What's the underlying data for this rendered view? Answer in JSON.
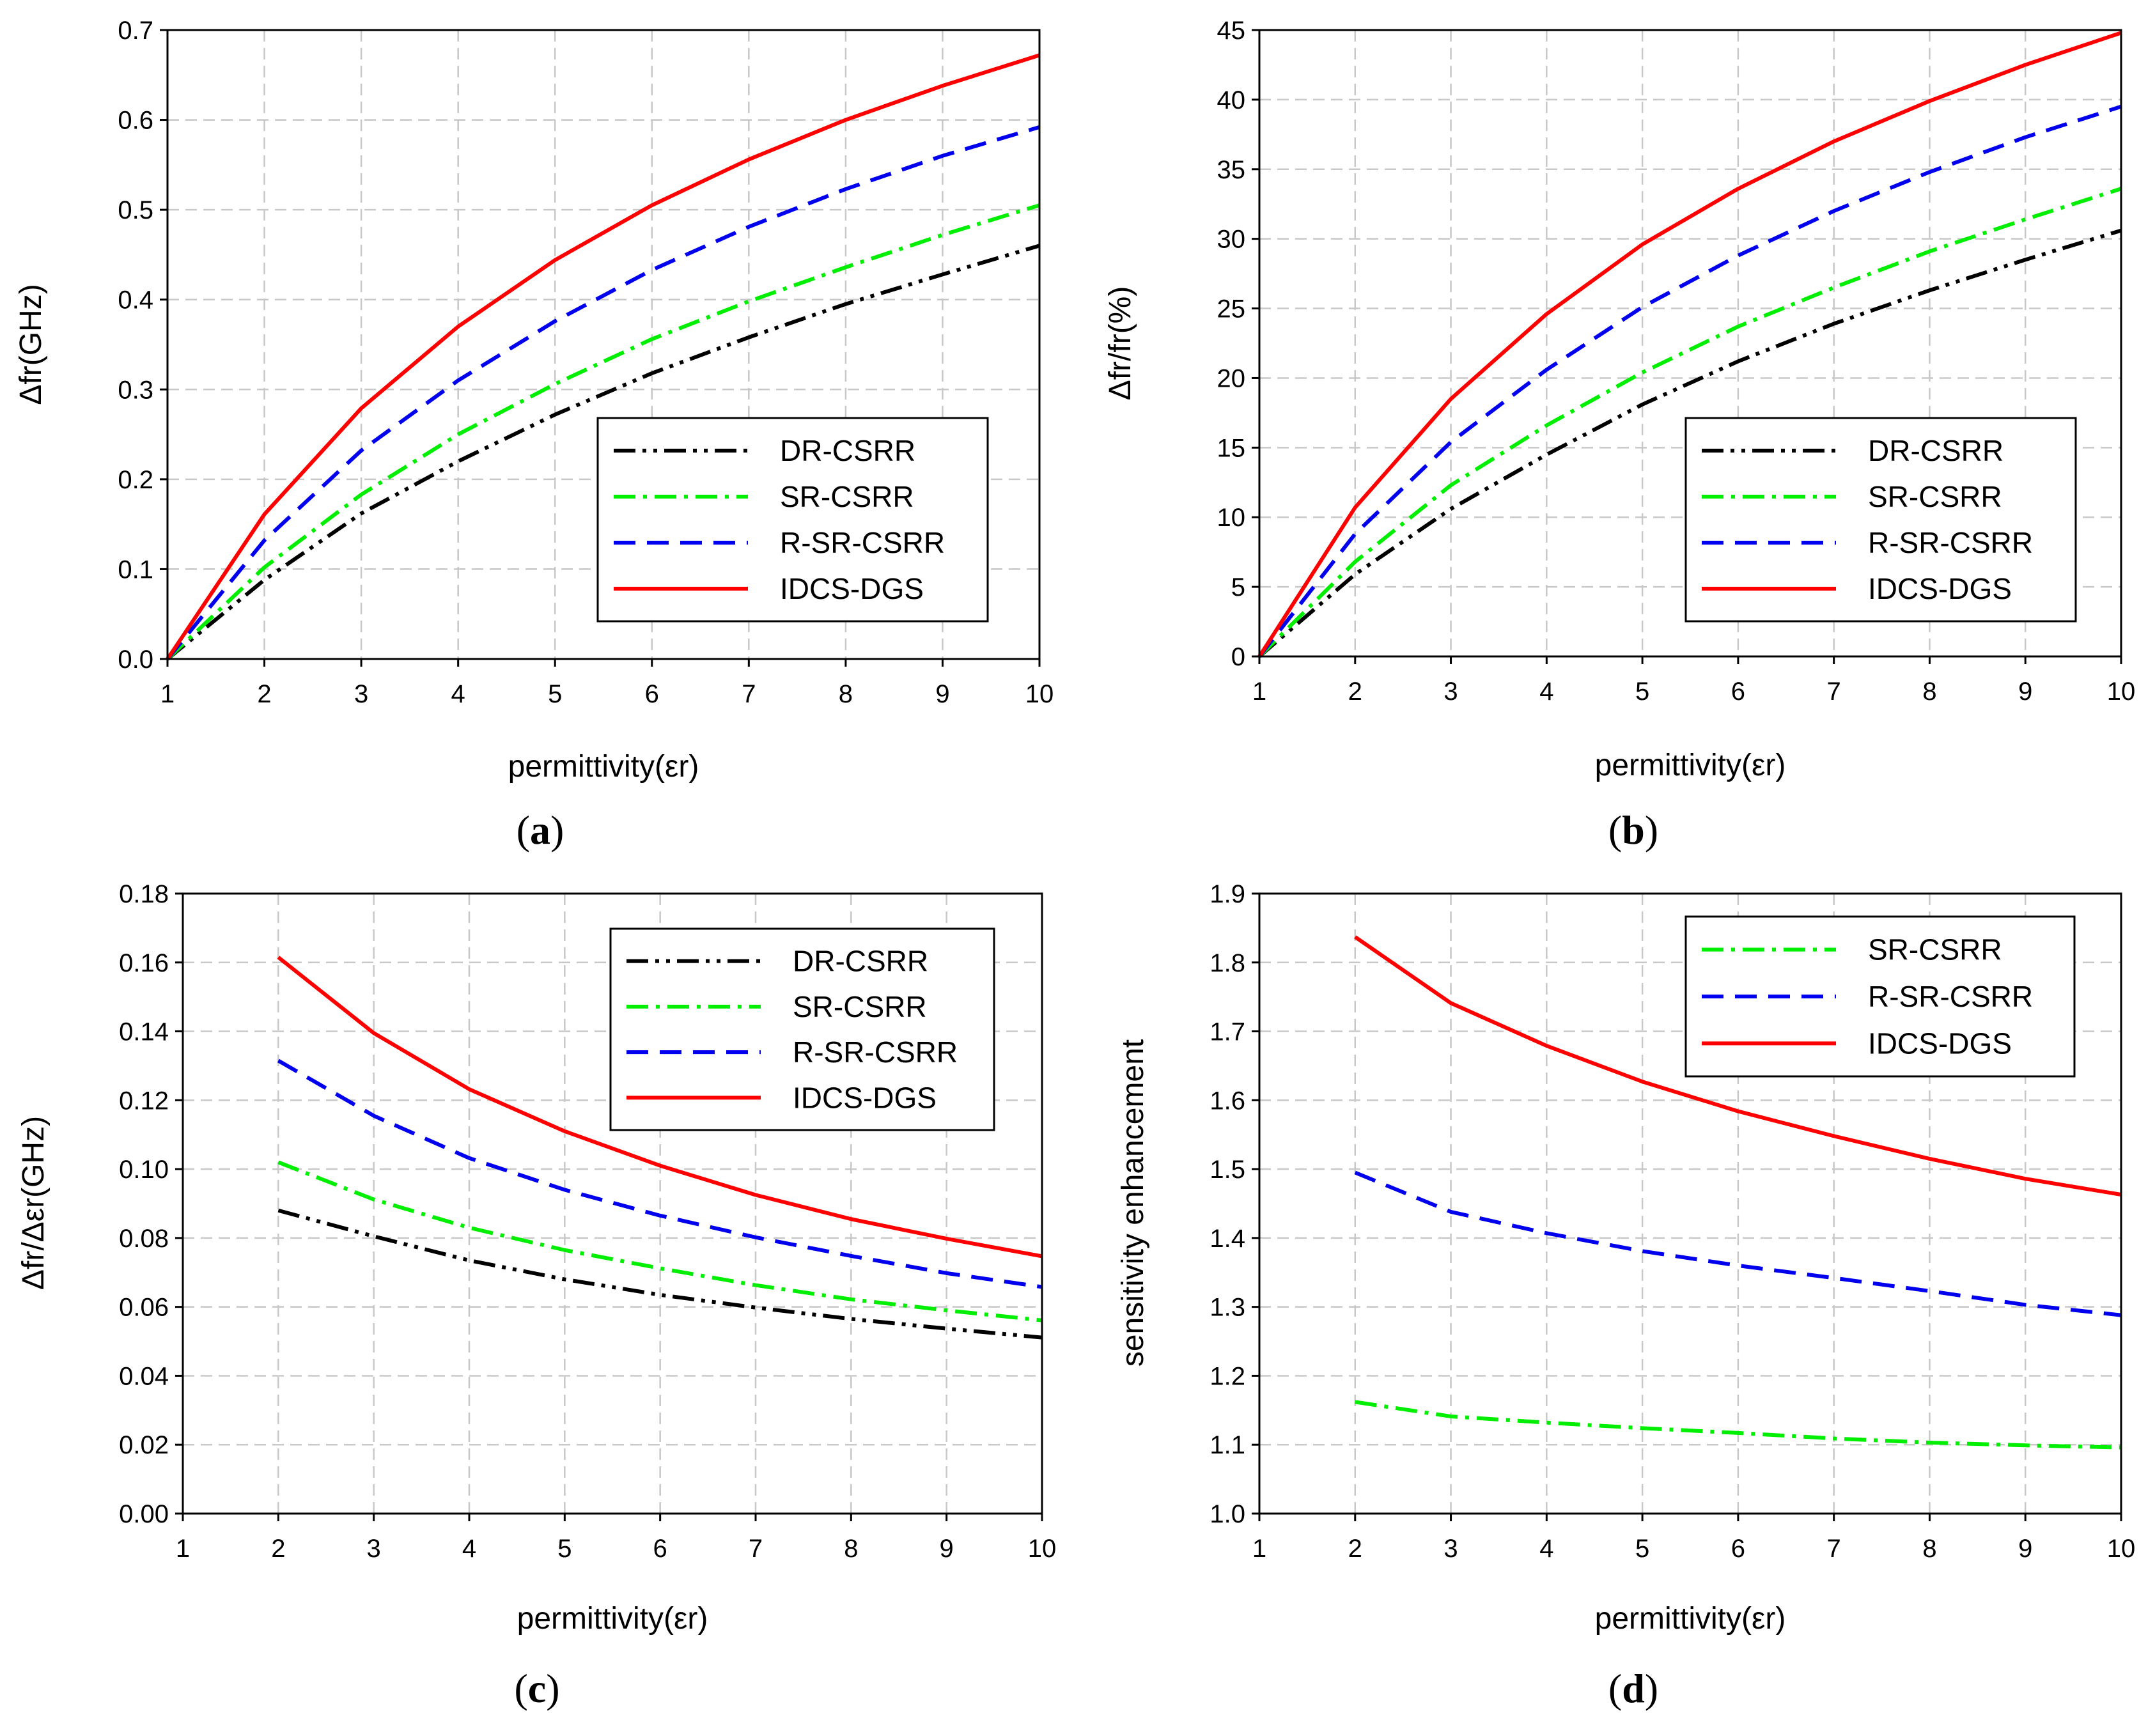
{
  "chart_data": [
    {
      "type": "line",
      "caption": "a",
      "title": "",
      "xlabel": "permittivity(εr)",
      "ylabel": "Δfr(GHz)",
      "xlim": [
        1,
        10
      ],
      "ylim": [
        0,
        0.7
      ],
      "x_ticks": [
        1,
        2,
        3,
        4,
        5,
        6,
        7,
        8,
        9,
        10
      ],
      "y_ticks": [
        "0.0",
        "0.1",
        "0.2",
        "0.3",
        "0.4",
        "0.5",
        "0.6",
        "0.7"
      ],
      "grid": true,
      "legend_position": "bottom-right",
      "x": [
        1,
        2,
        3,
        4,
        5,
        6,
        7,
        8,
        9,
        10
      ],
      "series": [
        {
          "name": "DR-CSRR",
          "style": "dash-dot-dot",
          "color": "#000000",
          "values": [
            0,
            0.088,
            0.162,
            0.22,
            0.272,
            0.318,
            0.358,
            0.395,
            0.428,
            0.46
          ]
        },
        {
          "name": "SR-CSRR",
          "style": "dash-dot",
          "color": "#00ee00",
          "values": [
            0,
            0.102,
            0.183,
            0.25,
            0.306,
            0.356,
            0.398,
            0.436,
            0.472,
            0.505
          ]
        },
        {
          "name": "R-SR-CSRR",
          "style": "dash",
          "color": "#0000ee",
          "values": [
            0,
            0.132,
            0.232,
            0.31,
            0.376,
            0.433,
            0.481,
            0.523,
            0.56,
            0.592
          ]
        },
        {
          "name": "IDCS-DGS",
          "style": "solid",
          "color": "#ff0000",
          "values": [
            0,
            0.161,
            0.279,
            0.37,
            0.444,
            0.505,
            0.556,
            0.6,
            0.638,
            0.672
          ]
        }
      ]
    },
    {
      "type": "line",
      "caption": "b",
      "title": "",
      "xlabel": "permittivity(εr)",
      "ylabel": "Δfr/fr(%)",
      "xlim": [
        1,
        10
      ],
      "ylim": [
        0,
        45
      ],
      "x_ticks": [
        1,
        2,
        3,
        4,
        5,
        6,
        7,
        8,
        9,
        10
      ],
      "y_ticks": [
        "0",
        "5",
        "10",
        "15",
        "20",
        "25",
        "30",
        "35",
        "40",
        "45"
      ],
      "grid": true,
      "legend_position": "bottom-right",
      "x": [
        1,
        2,
        3,
        4,
        5,
        6,
        7,
        8,
        9,
        10
      ],
      "series": [
        {
          "name": "DR-CSRR",
          "style": "dash-dot-dot",
          "color": "#000000",
          "values": [
            0,
            5.9,
            10.6,
            14.5,
            18.1,
            21.2,
            23.9,
            26.3,
            28.5,
            30.6
          ]
        },
        {
          "name": "SR-CSRR",
          "style": "dash-dot",
          "color": "#00ee00",
          "values": [
            0,
            6.8,
            12.3,
            16.6,
            20.4,
            23.7,
            26.5,
            29.1,
            31.4,
            33.6
          ]
        },
        {
          "name": "R-SR-CSRR",
          "style": "dash",
          "color": "#0000ee",
          "values": [
            0,
            8.8,
            15.4,
            20.6,
            25.1,
            28.8,
            32.0,
            34.8,
            37.3,
            39.5
          ]
        },
        {
          "name": "IDCS-DGS",
          "style": "solid",
          "color": "#ff0000",
          "values": [
            0,
            10.7,
            18.5,
            24.6,
            29.6,
            33.6,
            37.0,
            39.9,
            42.5,
            44.8
          ]
        }
      ]
    },
    {
      "type": "line",
      "caption": "c",
      "title": "",
      "xlabel": "permittivity(εr)",
      "ylabel": "Δfr/Δεr(GHz)",
      "xlim": [
        1,
        10
      ],
      "ylim": [
        0,
        0.18
      ],
      "x_ticks": [
        1,
        2,
        3,
        4,
        5,
        6,
        7,
        8,
        9,
        10
      ],
      "y_ticks": [
        "0.00",
        "0.02",
        "0.04",
        "0.06",
        "0.08",
        "0.10",
        "0.12",
        "0.14",
        "0.16",
        "0.18"
      ],
      "grid": true,
      "legend_position": "top-right",
      "x": [
        2,
        3,
        4,
        5,
        6,
        7,
        8,
        9,
        10
      ],
      "series": [
        {
          "name": "DR-CSRR",
          "style": "dash-dot-dot",
          "color": "#000000",
          "values": [
            0.088,
            0.0805,
            0.0735,
            0.068,
            0.0635,
            0.0598,
            0.0565,
            0.0537,
            0.0511
          ]
        },
        {
          "name": "SR-CSRR",
          "style": "dash-dot",
          "color": "#00ee00",
          "values": [
            0.102,
            0.0912,
            0.083,
            0.0765,
            0.0712,
            0.0663,
            0.0622,
            0.059,
            0.0561
          ]
        },
        {
          "name": "R-SR-CSRR",
          "style": "dash",
          "color": "#0000ee",
          "values": [
            0.1315,
            0.1155,
            0.1032,
            0.094,
            0.0865,
            0.0802,
            0.0748,
            0.0698,
            0.0658
          ]
        },
        {
          "name": "IDCS-DGS",
          "style": "solid",
          "color": "#ff0000",
          "values": [
            0.1615,
            0.1395,
            0.1232,
            0.111,
            0.101,
            0.0925,
            0.0855,
            0.0798,
            0.0747
          ]
        }
      ]
    },
    {
      "type": "line",
      "caption": "d",
      "title": "",
      "xlabel": "permittivity(εr)",
      "ylabel": "sensitivity enhancement",
      "xlim": [
        1,
        10
      ],
      "ylim": [
        1.0,
        1.9
      ],
      "x_ticks": [
        1,
        2,
        3,
        4,
        5,
        6,
        7,
        8,
        9,
        10
      ],
      "y_ticks": [
        "1.0",
        "1.1",
        "1.2",
        "1.3",
        "1.4",
        "1.5",
        "1.6",
        "1.7",
        "1.8",
        "1.9"
      ],
      "grid": true,
      "legend_position": "top-right",
      "x": [
        2,
        3,
        4,
        5,
        6,
        7,
        8,
        9,
        10
      ],
      "series": [
        {
          "name": "SR-CSRR",
          "style": "dash-dot",
          "color": "#00ee00",
          "values": [
            1.162,
            1.141,
            1.132,
            1.124,
            1.117,
            1.109,
            1.103,
            1.099,
            1.096
          ]
        },
        {
          "name": "R-SR-CSRR",
          "style": "dash",
          "color": "#0000ee",
          "values": [
            1.495,
            1.438,
            1.407,
            1.381,
            1.36,
            1.342,
            1.323,
            1.303,
            1.288
          ]
        },
        {
          "name": "IDCS-DGS",
          "style": "solid",
          "color": "#ff0000",
          "values": [
            1.837,
            1.741,
            1.679,
            1.627,
            1.584,
            1.548,
            1.515,
            1.486,
            1.463
          ]
        }
      ]
    }
  ]
}
